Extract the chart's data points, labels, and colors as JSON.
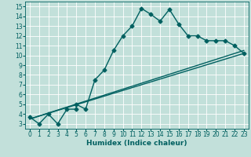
{
  "xlabel": "Humidex (Indice chaleur)",
  "bg_color": "#c2e0da",
  "grid_color": "#ffffff",
  "line_color": "#006060",
  "xlim": [
    -0.5,
    23.5
  ],
  "ylim": [
    2.5,
    15.5
  ],
  "xticks": [
    0,
    1,
    2,
    3,
    4,
    5,
    6,
    7,
    8,
    9,
    10,
    11,
    12,
    13,
    14,
    15,
    16,
    17,
    18,
    19,
    20,
    21,
    22,
    23
  ],
  "yticks": [
    3,
    4,
    5,
    6,
    7,
    8,
    9,
    10,
    11,
    12,
    13,
    14,
    15
  ],
  "curve1_x": [
    0,
    1,
    2,
    3,
    4,
    5,
    5,
    6,
    7,
    8,
    9,
    10,
    11,
    12,
    13,
    14,
    15,
    16,
    17,
    18,
    19,
    20,
    21,
    22,
    23
  ],
  "curve1_y": [
    3.7,
    3.0,
    4.0,
    3.0,
    4.5,
    4.5,
    5.0,
    4.5,
    7.5,
    8.5,
    10.5,
    12.0,
    13.0,
    14.8,
    14.2,
    13.5,
    14.7,
    13.2,
    12.0,
    12.0,
    11.5,
    11.5,
    11.5,
    11.0,
    10.2
  ],
  "line2_x": [
    0,
    23
  ],
  "line2_y": [
    3.5,
    10.2
  ],
  "line3_x": [
    0,
    23
  ],
  "line3_y": [
    3.5,
    10.5
  ],
  "marker": "D",
  "markersize": 2.5,
  "linewidth": 1.0,
  "tick_fontsize": 5.5,
  "xlabel_fontsize": 6.5
}
